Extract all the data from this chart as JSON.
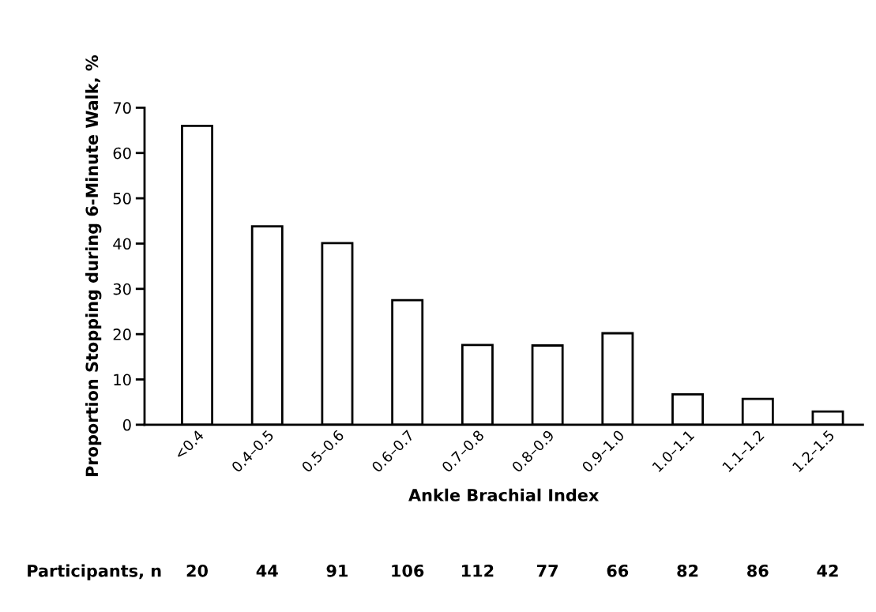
{
  "chart_data": {
    "type": "bar",
    "xlabel": "Ankle Brachial Index",
    "ylabel": "Proportion Stopping during 6-Minute Walk, %",
    "categories": [
      "<0.4",
      "0.4–0.5",
      "0.5–0.6",
      "0.6–0.7",
      "0.7–0.8",
      "0.8–0.9",
      "0.9–1.0",
      "1.0–1.1",
      "1.1–1.2",
      "1.2–1.5"
    ],
    "values": [
      66,
      43.8,
      40.1,
      27.5,
      17.6,
      17.5,
      20.2,
      6.7,
      5.7,
      2.9
    ],
    "color": "#ffffff",
    "ylim": [
      0,
      70
    ],
    "yticks": [
      0,
      10,
      20,
      30,
      40,
      50,
      60,
      70
    ],
    "grid": false,
    "legend": false,
    "annotations": [
      "Participants, n",
      "20",
      "44",
      "91",
      "106",
      "112",
      "77",
      "66",
      "82",
      "86",
      "42"
    ]
  }
}
